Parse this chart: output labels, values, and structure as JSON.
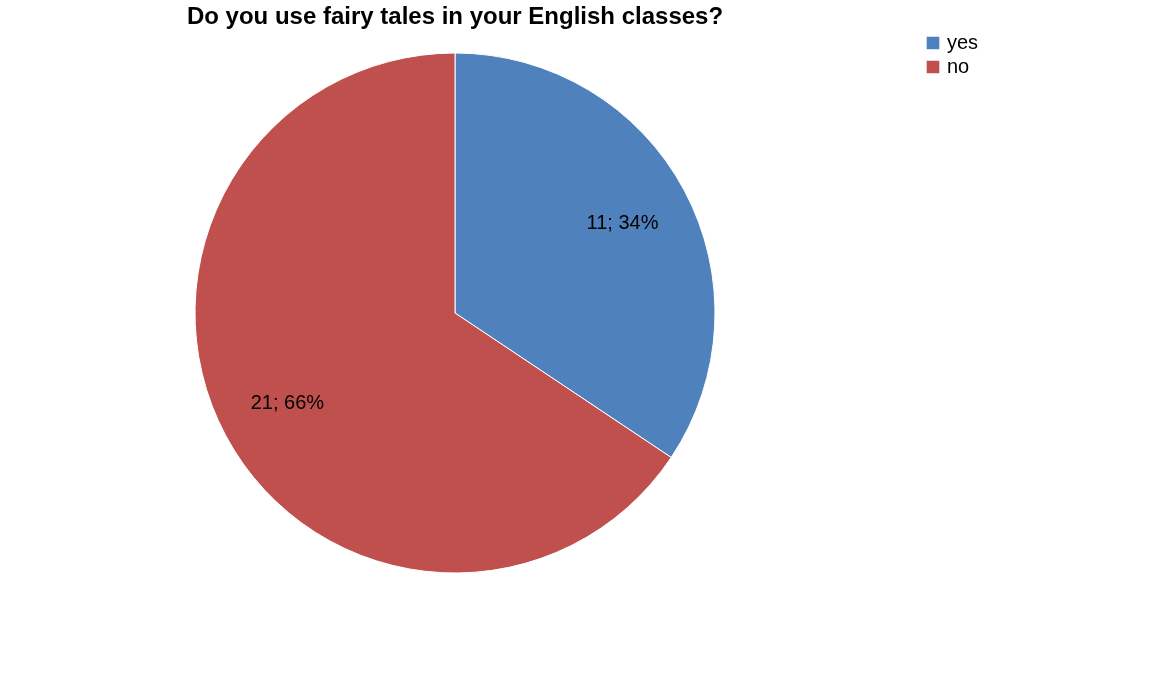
{
  "chart_data": {
    "type": "pie",
    "title": "Do you use fairy tales in your English classes?",
    "categories": [
      "yes",
      "no"
    ],
    "values": [
      11,
      21
    ],
    "colors": [
      "#4f81bd",
      "#c0504d"
    ],
    "value_labels": [
      "11; 34%",
      "21; 66%"
    ],
    "legend": "right"
  }
}
